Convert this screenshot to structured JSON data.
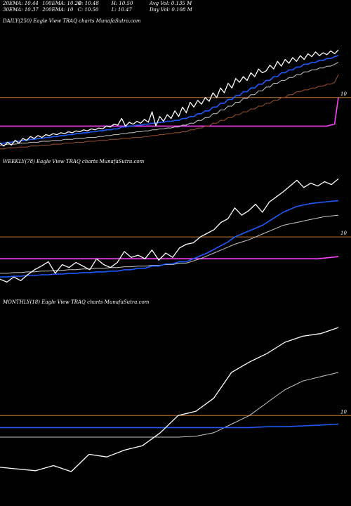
{
  "stats": {
    "rows": [
      [
        "20EMA: 10.44",
        "100EMA: 10.24",
        "O: 10.48",
        "H: 10.50",
        "Avg Vol: 0.135 M"
      ],
      [
        "30EMA: 10.37",
        "200EMA: 10",
        "C: 10.50",
        "L: 10.47",
        "Day Vol: 0.108 M"
      ]
    ]
  },
  "colors": {
    "background": "#000000",
    "price": "#ffffff",
    "ema_blue": "#1e5bff",
    "ema_grey": "#c8c8c8",
    "ema_brown": "#a0522d",
    "magenta": "#ff40ff",
    "orange": "#c87832"
  },
  "chart_data": [
    {
      "type": "line",
      "title": "DAILY(250) Eagle   View  TRAQ charts MunafaSutra.com",
      "level_label": "10",
      "level_value": 10,
      "ylim": [
        9.4,
        10.7
      ],
      "series": [
        {
          "role": "price",
          "values": [
            9.52,
            9.49,
            9.53,
            9.5,
            9.55,
            9.52,
            9.57,
            9.55,
            9.59,
            9.57,
            9.6,
            9.58,
            9.61,
            9.6,
            9.62,
            9.61,
            9.63,
            9.62,
            9.64,
            9.63,
            9.65,
            9.64,
            9.66,
            9.65,
            9.67,
            9.66,
            9.68,
            9.67,
            9.7,
            9.69,
            9.72,
            9.71,
            9.78,
            9.7,
            9.74,
            9.72,
            9.75,
            9.73,
            9.77,
            9.74,
            9.85,
            9.7,
            9.8,
            9.75,
            9.82,
            9.78,
            9.86,
            9.8,
            9.9,
            9.84,
            9.95,
            9.9,
            9.97,
            9.93,
            10.0,
            9.96,
            10.05,
            10.0,
            10.1,
            10.05,
            10.15,
            10.1,
            10.2,
            10.16,
            10.22,
            10.18,
            10.26,
            10.22,
            10.3,
            10.26,
            10.28,
            10.34,
            10.3,
            10.38,
            10.33,
            10.4,
            10.36,
            10.42,
            10.38,
            10.44,
            10.4,
            10.46,
            10.43,
            10.48,
            10.44,
            10.47,
            10.45,
            10.49,
            10.46,
            10.5
          ]
        },
        {
          "role": "ema-blue",
          "values": [
            9.52,
            9.52,
            9.53,
            9.53,
            9.54,
            9.54,
            9.55,
            9.55,
            9.56,
            9.56,
            9.57,
            9.57,
            9.58,
            9.58,
            9.59,
            9.59,
            9.6,
            9.6,
            9.61,
            9.61,
            9.62,
            9.62,
            9.63,
            9.63,
            9.64,
            9.64,
            9.65,
            9.65,
            9.66,
            9.66,
            9.67,
            9.67,
            9.69,
            9.69,
            9.7,
            9.7,
            9.71,
            9.71,
            9.72,
            9.72,
            9.73,
            9.73,
            9.74,
            9.74,
            9.75,
            9.75,
            9.76,
            9.76,
            9.78,
            9.78,
            9.8,
            9.8,
            9.83,
            9.83,
            9.86,
            9.86,
            9.9,
            9.9,
            9.94,
            9.94,
            9.98,
            9.98,
            10.02,
            10.02,
            10.06,
            10.06,
            10.1,
            10.1,
            10.14,
            10.14,
            10.18,
            10.18,
            10.22,
            10.22,
            10.26,
            10.26,
            10.29,
            10.29,
            10.32,
            10.32,
            10.35,
            10.35,
            10.37,
            10.37,
            10.39,
            10.39,
            10.41,
            10.41,
            10.43,
            10.44
          ]
        },
        {
          "role": "ema-grey",
          "values": [
            9.5,
            9.5,
            9.51,
            9.51,
            9.51,
            9.52,
            9.52,
            9.52,
            9.53,
            9.53,
            9.53,
            9.54,
            9.54,
            9.54,
            9.55,
            9.55,
            9.55,
            9.56,
            9.56,
            9.56,
            9.57,
            9.57,
            9.57,
            9.58,
            9.58,
            9.58,
            9.59,
            9.59,
            9.6,
            9.6,
            9.61,
            9.61,
            9.62,
            9.62,
            9.63,
            9.63,
            9.64,
            9.64,
            9.65,
            9.65,
            9.66,
            9.66,
            9.67,
            9.67,
            9.68,
            9.68,
            9.69,
            9.69,
            9.71,
            9.71,
            9.73,
            9.73,
            9.76,
            9.76,
            9.79,
            9.79,
            9.83,
            9.83,
            9.87,
            9.87,
            9.91,
            9.91,
            9.95,
            9.95,
            9.99,
            9.99,
            10.03,
            10.03,
            10.07,
            10.07,
            10.11,
            10.11,
            10.15,
            10.15,
            10.18,
            10.18,
            10.21,
            10.21,
            10.24,
            10.24,
            10.27,
            10.27,
            10.29,
            10.29,
            10.31,
            10.31,
            10.33,
            10.33,
            10.35,
            10.37
          ]
        },
        {
          "role": "ema-brown",
          "values": [
            9.46,
            9.46,
            9.47,
            9.47,
            9.47,
            9.48,
            9.48,
            9.48,
            9.49,
            9.49,
            9.49,
            9.5,
            9.5,
            9.5,
            9.51,
            9.51,
            9.51,
            9.52,
            9.52,
            9.52,
            9.53,
            9.53,
            9.53,
            9.54,
            9.54,
            9.54,
            9.55,
            9.55,
            9.55,
            9.56,
            9.56,
            9.56,
            9.57,
            9.57,
            9.57,
            9.58,
            9.58,
            9.58,
            9.59,
            9.59,
            9.6,
            9.6,
            9.61,
            9.61,
            9.62,
            9.62,
            9.63,
            9.63,
            9.64,
            9.64,
            9.66,
            9.66,
            9.68,
            9.68,
            9.7,
            9.7,
            9.73,
            9.73,
            9.76,
            9.76,
            9.79,
            9.79,
            9.82,
            9.82,
            9.85,
            9.85,
            9.88,
            9.88,
            9.91,
            9.91,
            9.94,
            9.94,
            9.97,
            9.97,
            10.0,
            10.0,
            10.03,
            10.03,
            10.06,
            10.06,
            10.08,
            10.08,
            10.1,
            10.1,
            10.12,
            10.12,
            10.14,
            10.14,
            10.16,
            10.24
          ]
        },
        {
          "role": "ema-magenta",
          "values": [
            9.7,
            9.7,
            9.7,
            9.7,
            9.7,
            9.7,
            9.7,
            9.7,
            9.7,
            9.7,
            9.7,
            9.7,
            9.7,
            9.7,
            9.7,
            9.7,
            9.7,
            9.7,
            9.7,
            9.7,
            9.7,
            9.7,
            9.7,
            9.7,
            9.7,
            9.7,
            9.7,
            9.7,
            9.7,
            9.7,
            9.7,
            9.7,
            9.7,
            9.7,
            9.7,
            9.7,
            9.7,
            9.7,
            9.7,
            9.7,
            9.7,
            9.7,
            9.7,
            9.7,
            9.7,
            9.7,
            9.7,
            9.7,
            9.7,
            9.7,
            9.7,
            9.7,
            9.7,
            9.7,
            9.7,
            9.7,
            9.7,
            9.7,
            9.7,
            9.7,
            9.7,
            9.7,
            9.7,
            9.7,
            9.7,
            9.7,
            9.7,
            9.7,
            9.7,
            9.7,
            9.7,
            9.7,
            9.7,
            9.7,
            9.7,
            9.7,
            9.7,
            9.7,
            9.7,
            9.7,
            9.7,
            9.7,
            9.7,
            9.7,
            9.7,
            9.7,
            9.7,
            9.71,
            9.72,
            10.0
          ]
        }
      ]
    },
    {
      "type": "line",
      "title": "WEEKLY(78) Eagle   View  TRAQ charts MunafaSutra.com",
      "level_label": "10",
      "level_value": 10,
      "ylim": [
        9.2,
        10.9
      ],
      "series": [
        {
          "role": "price",
          "values": [
            9.42,
            9.38,
            9.45,
            9.4,
            9.48,
            9.55,
            9.6,
            9.66,
            9.5,
            9.62,
            9.58,
            9.65,
            9.6,
            9.55,
            9.7,
            9.62,
            9.58,
            9.65,
            9.8,
            9.72,
            9.75,
            9.7,
            9.82,
            9.68,
            9.78,
            9.72,
            9.85,
            9.9,
            9.92,
            10.0,
            10.05,
            10.1,
            10.2,
            10.25,
            10.4,
            10.3,
            10.36,
            10.45,
            10.34,
            10.48,
            10.55,
            10.62,
            10.7,
            10.78,
            10.68,
            10.74,
            10.7,
            10.76,
            10.72,
            10.8
          ]
        },
        {
          "role": "ema-blue",
          "values": [
            9.45,
            9.45,
            9.46,
            9.46,
            9.47,
            9.47,
            9.48,
            9.48,
            9.49,
            9.49,
            9.5,
            9.5,
            9.51,
            9.51,
            9.52,
            9.52,
            9.53,
            9.53,
            9.55,
            9.55,
            9.57,
            9.57,
            9.6,
            9.6,
            9.63,
            9.63,
            9.66,
            9.66,
            9.7,
            9.74,
            9.78,
            9.83,
            9.88,
            9.93,
            10.0,
            10.04,
            10.08,
            10.12,
            10.16,
            10.22,
            10.28,
            10.34,
            10.38,
            10.42,
            10.44,
            10.46,
            10.47,
            10.48,
            10.49,
            10.5
          ]
        },
        {
          "role": "ema-grey",
          "values": [
            9.5,
            9.5,
            9.51,
            9.51,
            9.52,
            9.52,
            9.53,
            9.53,
            9.54,
            9.54,
            9.55,
            9.55,
            9.56,
            9.56,
            9.57,
            9.57,
            9.58,
            9.58,
            9.59,
            9.59,
            9.6,
            9.6,
            9.61,
            9.61,
            9.62,
            9.62,
            9.64,
            9.64,
            9.67,
            9.7,
            9.74,
            9.78,
            9.82,
            9.86,
            9.9,
            9.93,
            9.96,
            10.0,
            10.04,
            10.08,
            10.12,
            10.16,
            10.18,
            10.2,
            10.22,
            10.24,
            10.26,
            10.28,
            10.29,
            10.3
          ]
        },
        {
          "role": "ema-magenta",
          "values": [
            9.7,
            9.7,
            9.7,
            9.7,
            9.7,
            9.7,
            9.7,
            9.7,
            9.7,
            9.7,
            9.7,
            9.7,
            9.7,
            9.7,
            9.7,
            9.7,
            9.7,
            9.7,
            9.7,
            9.7,
            9.7,
            9.7,
            9.7,
            9.7,
            9.7,
            9.7,
            9.7,
            9.7,
            9.7,
            9.7,
            9.7,
            9.7,
            9.7,
            9.7,
            9.7,
            9.7,
            9.7,
            9.7,
            9.7,
            9.7,
            9.7,
            9.7,
            9.7,
            9.7,
            9.7,
            9.7,
            9.7,
            9.71,
            9.72,
            9.73
          ]
        }
      ]
    },
    {
      "type": "line",
      "title": "MONTHLY(18) Eagle   View  TRAQ charts MunafaSutra.com",
      "level_label": "10",
      "level_value": 10,
      "ylim": [
        9.0,
        11.2
      ],
      "series": [
        {
          "role": "price",
          "values": [
            9.4,
            9.38,
            9.36,
            9.42,
            9.35,
            9.55,
            9.52,
            9.6,
            9.65,
            9.8,
            10.0,
            10.05,
            10.2,
            10.5,
            10.62,
            10.72,
            10.85,
            10.92,
            10.95,
            11.02
          ]
        },
        {
          "role": "ema-grey",
          "values": [
            9.75,
            9.75,
            9.75,
            9.75,
            9.75,
            9.75,
            9.75,
            9.75,
            9.75,
            9.75,
            9.75,
            9.76,
            9.8,
            9.9,
            10.0,
            10.15,
            10.3,
            10.4,
            10.45,
            10.5
          ]
        },
        {
          "role": "ema-blue",
          "values": [
            9.86,
            9.86,
            9.86,
            9.86,
            9.86,
            9.86,
            9.86,
            9.86,
            9.86,
            9.86,
            9.86,
            9.86,
            9.86,
            9.86,
            9.86,
            9.87,
            9.87,
            9.88,
            9.89,
            9.9
          ]
        }
      ]
    }
  ]
}
